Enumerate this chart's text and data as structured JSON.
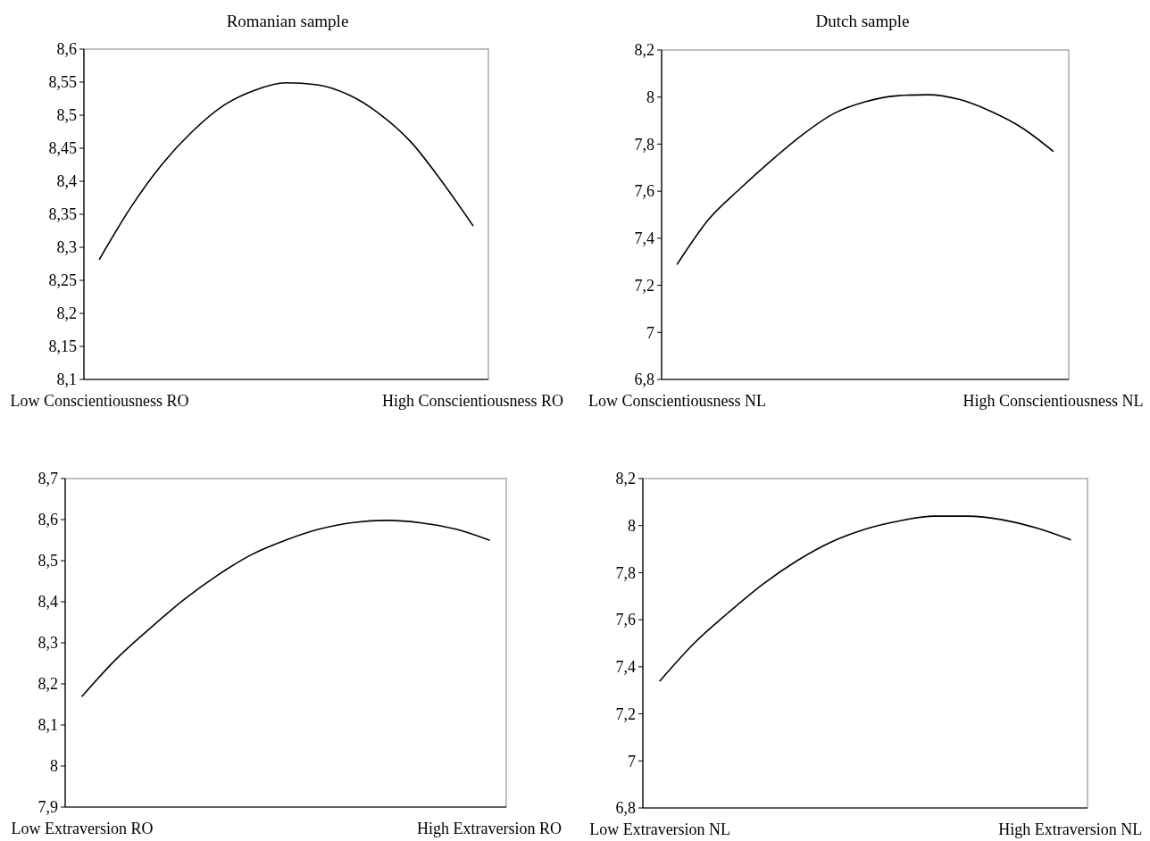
{
  "chart_data": [
    {
      "type": "line",
      "title": "Romanian sample",
      "categories": [
        "Low Conscientiousness RO",
        null,
        null,
        null,
        null,
        null,
        null,
        null,
        null,
        null,
        null,
        null,
        "High Conscientiousness RO"
      ],
      "series": [
        {
          "color": "#000000",
          "values": [
            8.282,
            8.36,
            8.425,
            8.476,
            8.515,
            8.538,
            8.549,
            8.546,
            8.531,
            8.502,
            8.46,
            8.4,
            8.333
          ]
        }
      ],
      "ylim": [
        8.1,
        8.6
      ],
      "yticks": [
        {
          "value": 8.1,
          "label": "8,1"
        },
        {
          "value": 8.15,
          "label": "8,15"
        },
        {
          "value": 8.2,
          "label": "8,2"
        },
        {
          "value": 8.25,
          "label": "8,25"
        },
        {
          "value": 8.3,
          "label": "8,3"
        },
        {
          "value": 8.35,
          "label": "8,35"
        },
        {
          "value": 8.4,
          "label": "8,4"
        },
        {
          "value": 8.45,
          "label": "8,45"
        },
        {
          "value": 8.5,
          "label": "8,5"
        },
        {
          "value": 8.55,
          "label": "8,55"
        },
        {
          "value": 8.6,
          "label": "8,6"
        }
      ],
      "line_style": "solid"
    },
    {
      "type": "line",
      "title": "Dutch sample",
      "categories": [
        "Low Conscientiousness NL",
        null,
        null,
        null,
        null,
        null,
        null,
        null,
        null,
        null,
        null,
        null,
        "High Conscientiousness NL"
      ],
      "series": [
        {
          "color": "#000000",
          "values": [
            7.29,
            7.48,
            7.61,
            7.73,
            7.84,
            7.93,
            7.98,
            8.005,
            8.01,
            7.99,
            7.94,
            7.87,
            7.77
          ]
        }
      ],
      "ylim": [
        6.8,
        8.2
      ],
      "yticks": [
        {
          "value": 6.8,
          "label": "6,8"
        },
        {
          "value": 7,
          "label": "7"
        },
        {
          "value": 7.2,
          "label": "7,2"
        },
        {
          "value": 7.4,
          "label": "7,4"
        },
        {
          "value": 7.6,
          "label": "7,6"
        },
        {
          "value": 7.8,
          "label": "7,8"
        },
        {
          "value": 8,
          "label": "8"
        },
        {
          "value": 8.2,
          "label": "8,2"
        }
      ],
      "line_style": "solid"
    },
    {
      "type": "line",
      "categories": [
        "Low Extraversion RO",
        null,
        null,
        null,
        null,
        null,
        null,
        null,
        null,
        null,
        null,
        null,
        "High Extraversion RO"
      ],
      "series": [
        {
          "color": "#000000",
          "values": [
            8.17,
            8.26,
            8.335,
            8.405,
            8.465,
            8.515,
            8.55,
            8.577,
            8.593,
            8.598,
            8.592,
            8.577,
            8.55
          ]
        }
      ],
      "ylim": [
        7.9,
        8.7
      ],
      "yticks": [
        {
          "value": 7.9,
          "label": "7,9"
        },
        {
          "value": 8,
          "label": "8"
        },
        {
          "value": 8.1,
          "label": "8,1"
        },
        {
          "value": 8.2,
          "label": "8,2"
        },
        {
          "value": 8.3,
          "label": "8,3"
        },
        {
          "value": 8.4,
          "label": "8,4"
        },
        {
          "value": 8.5,
          "label": "8,5"
        },
        {
          "value": 8.6,
          "label": "8,6"
        },
        {
          "value": 8.7,
          "label": "8,7"
        }
      ],
      "line_style": "solid"
    },
    {
      "type": "line",
      "categories": [
        "Low Extraversion NL",
        null,
        null,
        null,
        null,
        null,
        null,
        null,
        null,
        null,
        null,
        null,
        "High Extraversion NL"
      ],
      "series": [
        {
          "color": "#000000",
          "values": [
            7.34,
            7.5,
            7.63,
            7.75,
            7.85,
            7.93,
            7.985,
            8.02,
            8.04,
            8.04,
            8.025,
            7.99,
            7.94
          ]
        }
      ],
      "ylim": [
        6.8,
        8.2
      ],
      "yticks": [
        {
          "value": 6.8,
          "label": "6,8"
        },
        {
          "value": 7,
          "label": "7"
        },
        {
          "value": 7.2,
          "label": "7,2"
        },
        {
          "value": 7.4,
          "label": "7,4"
        },
        {
          "value": 7.6,
          "label": "7,6"
        },
        {
          "value": 7.8,
          "label": "7,8"
        },
        {
          "value": 8,
          "label": "8"
        },
        {
          "value": 8.2,
          "label": "8,2"
        }
      ],
      "line_style": "solid"
    }
  ]
}
